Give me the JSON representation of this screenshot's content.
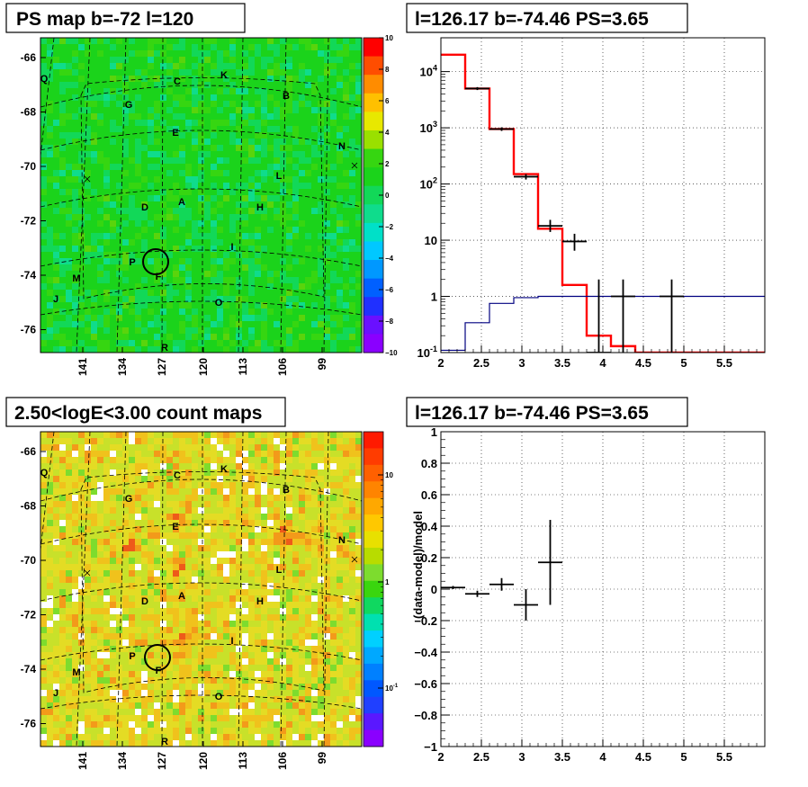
{
  "chart_data": [
    {
      "type": "heatmap",
      "title": "PS map b=-72 l=120",
      "y_ticks": [
        "-66",
        "-68",
        "-70",
        "-72",
        "-74",
        "-76"
      ],
      "x_ticks": [
        "141",
        "134",
        "127",
        "120",
        "113",
        "106",
        "99"
      ],
      "colorbar_ticks": [
        "10",
        "8",
        "6",
        "4",
        "2",
        "0",
        "-2",
        "-4",
        "-6",
        "-8",
        "-10"
      ],
      "zlim": [
        -10,
        10
      ],
      "labels": [
        "Q",
        "C",
        "K",
        "B",
        "G",
        "E",
        "N",
        "L",
        "D",
        "A",
        "H",
        "I",
        "P",
        "F",
        "M",
        "J",
        "O",
        "R"
      ],
      "grid": true
    },
    {
      "type": "line",
      "title": "l=126.17 b=-74.46 PS=3.65",
      "log_y": true,
      "xlim": [
        2,
        6
      ],
      "ylim": [
        0.1,
        40000
      ],
      "x_ticks": [
        "2",
        "2.5",
        "3",
        "3.5",
        "4",
        "4.5",
        "5",
        "5.5"
      ],
      "y_ticks": [
        "10^4",
        "10^3",
        "10^2",
        "10",
        "1",
        "10^-1"
      ],
      "grid": true,
      "series": [
        {
          "color": "#ff0000",
          "edges": [
            2.0,
            2.3,
            2.6,
            2.9,
            3.2,
            3.5,
            3.8,
            4.1,
            4.4,
            6.0
          ],
          "values": [
            20000,
            5000,
            950,
            150,
            16,
            1.6,
            0.2,
            0.13,
            0.1
          ]
        },
        {
          "color": "#000080",
          "edges": [
            2.0,
            2.3,
            2.6,
            2.9,
            3.2,
            6.0
          ],
          "values": [
            0.11,
            0.34,
            0.75,
            0.95,
            1.0
          ]
        },
        {
          "color": "#000000",
          "points": [
            {
              "x": 2.45,
              "xerr": 0.15,
              "y": 5000,
              "ylo": 4700,
              "yhi": 5300
            },
            {
              "x": 2.75,
              "xerr": 0.15,
              "y": 950,
              "ylo": 880,
              "yhi": 1020
            },
            {
              "x": 3.05,
              "xerr": 0.15,
              "y": 135,
              "ylo": 120,
              "yhi": 150
            },
            {
              "x": 3.35,
              "xerr": 0.15,
              "y": 18,
              "ylo": 14,
              "yhi": 23
            },
            {
              "x": 3.65,
              "xerr": 0.15,
              "y": 9.5,
              "ylo": 6.5,
              "yhi": 13
            },
            {
              "x": 3.95,
              "xerr": 0.15,
              "y": 0.1,
              "ylo": 0.1,
              "yhi": 2.0
            },
            {
              "x": 4.25,
              "xerr": 0.15,
              "y": 1.0,
              "ylo": 0.1,
              "yhi": 2.0
            },
            {
              "x": 4.85,
              "xerr": 0.15,
              "y": 1.0,
              "ylo": 0.1,
              "yhi": 2.0
            }
          ]
        }
      ]
    },
    {
      "type": "heatmap",
      "title": "2.50<logE<3.00 count maps",
      "y_ticks": [
        "-66",
        "-68",
        "-70",
        "-72",
        "-74",
        "-76"
      ],
      "x_ticks": [
        "141",
        "134",
        "127",
        "120",
        "113",
        "106",
        "99"
      ],
      "colorbar_ticks": [
        "10",
        "1",
        "10^-1"
      ],
      "log_z": true,
      "labels": [
        "Q",
        "C",
        "K",
        "B",
        "G",
        "E",
        "N",
        "L",
        "D",
        "A",
        "H",
        "I",
        "P",
        "F",
        "M",
        "J",
        "O",
        "R"
      ],
      "grid": true
    },
    {
      "type": "scatter",
      "title": "l=126.17 b=-74.46 PS=3.65",
      "ylabel": "(data-model)/model",
      "xlim": [
        2,
        6
      ],
      "ylim": [
        -1,
        1
      ],
      "x_ticks": [
        "2",
        "2.5",
        "3",
        "3.5",
        "4",
        "4.5",
        "5",
        "5.5"
      ],
      "y_ticks": [
        "1",
        "0.8",
        "0.6",
        "0.4",
        "0.2",
        "0",
        "-0.2",
        "-0.4",
        "-0.6",
        "-0.8",
        "-1"
      ],
      "grid": true,
      "points": [
        {
          "x": 2.15,
          "xerr": 0.15,
          "y": 0.01,
          "ylo": 0.0,
          "yhi": 0.02
        },
        {
          "x": 2.45,
          "xerr": 0.15,
          "y": -0.03,
          "ylo": -0.05,
          "yhi": -0.01
        },
        {
          "x": 2.75,
          "xerr": 0.15,
          "y": 0.03,
          "ylo": -0.01,
          "yhi": 0.07
        },
        {
          "x": 3.05,
          "xerr": 0.15,
          "y": -0.1,
          "ylo": -0.2,
          "yhi": 0.0
        },
        {
          "x": 3.35,
          "xerr": 0.15,
          "y": 0.17,
          "ylo": -0.1,
          "yhi": 0.44
        }
      ]
    }
  ]
}
